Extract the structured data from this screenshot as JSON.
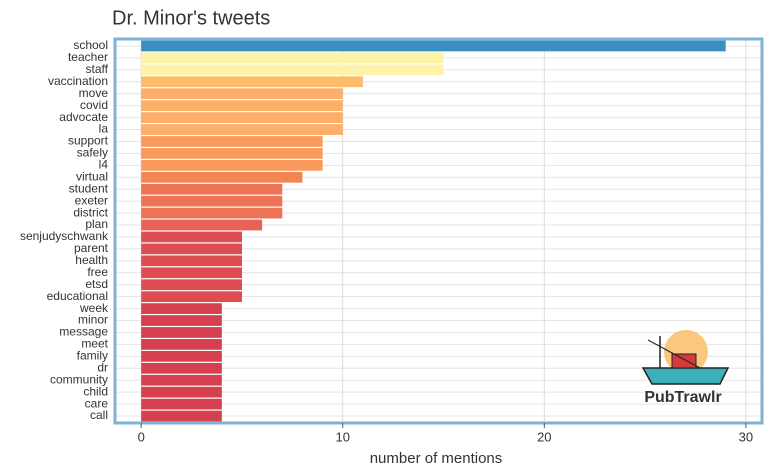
{
  "chart_data": {
    "type": "bar",
    "orientation": "horizontal",
    "title": "Dr. Minor's tweets",
    "xlabel": "number of mentions",
    "categories": [
      "school",
      "teacher",
      "staff",
      "vaccination",
      "move",
      "covid",
      "advocate",
      "la",
      "support",
      "safely",
      "l4",
      "virtual",
      "student",
      "exeter",
      "district",
      "plan",
      "senjudyschwank",
      "parent",
      "health",
      "free",
      "etsd",
      "educational",
      "week",
      "minor",
      "message",
      "meet",
      "family",
      "dr",
      "community",
      "child",
      "care",
      "call"
    ],
    "values": [
      29,
      15,
      15,
      11,
      10,
      10,
      10,
      10,
      9,
      9,
      9,
      8,
      7,
      7,
      7,
      6,
      5,
      5,
      5,
      5,
      5,
      5,
      4,
      4,
      4,
      4,
      4,
      4,
      4,
      4,
      4,
      4
    ],
    "colors": [
      "#3a8fc1",
      "#fef3a8",
      "#fef3a8",
      "#fdbb6c",
      "#fdae68",
      "#fdae68",
      "#fdae68",
      "#fdae68",
      "#f9995b",
      "#f9995b",
      "#f9995b",
      "#f38552",
      "#ee7456",
      "#ee7456",
      "#ee7456",
      "#e86258",
      "#dc4c51",
      "#dc4c51",
      "#dc4c51",
      "#dc4c51",
      "#dc4c51",
      "#dc4c51",
      "#d6404e",
      "#d6404e",
      "#d6404e",
      "#d6404e",
      "#d6404e",
      "#d6404e",
      "#d6404e",
      "#d6404e",
      "#d6404e",
      "#d6404e"
    ],
    "xlim": [
      -1.3,
      30.8
    ],
    "xticks": [
      0,
      10,
      20,
      30
    ],
    "grid": true,
    "logo": "PubTrawlr"
  }
}
